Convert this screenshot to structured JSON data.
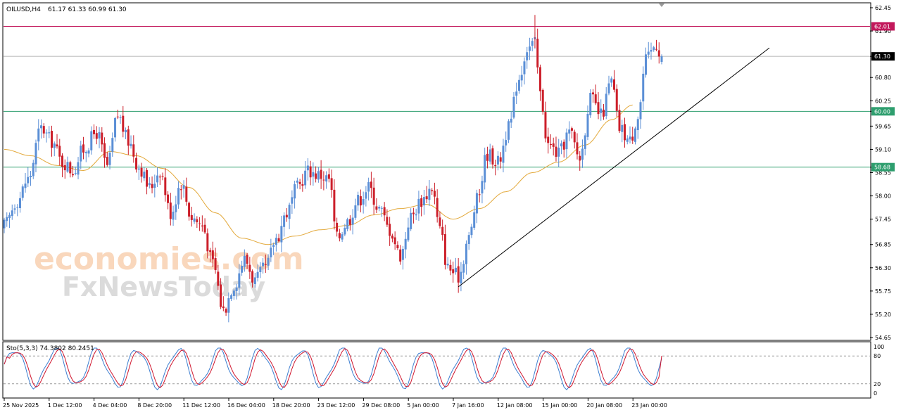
{
  "header": {
    "symbol_label": "OILUSD,H4",
    "ohlc_text": "61.17 61.33 60.99 61.30"
  },
  "watermark": {
    "line1": "economies.com",
    "line2": "FxNewsToday"
  },
  "colors": {
    "background": "#ffffff",
    "bull_candle": "#5b8fd6",
    "bear_candle": "#cc1f2a",
    "moving_average": "#e3a93b",
    "resistance_line": "#c2185b",
    "support_line": "#2e9e6e",
    "current_price_line": "#b5b5b5",
    "trendline": "#000000",
    "stoch_main": "#3d7fd1",
    "stoch_signal": "#d0172f"
  },
  "chart_data": [
    {
      "type": "candlestick",
      "symbol": "OILUSD",
      "timeframe": "H4",
      "y_axis_ticks": [
        "62.45",
        "61.90",
        "61.30",
        "60.80",
        "60.25",
        "60.00",
        "59.65",
        "59.10",
        "58.68",
        "58.55",
        "58.00",
        "57.45",
        "56.85",
        "56.30",
        "55.75",
        "55.20",
        "54.65"
      ],
      "ylim": [
        54.6,
        62.55
      ],
      "x_axis_ticks": [
        "25 Nov 2025",
        "1 Dec 12:00",
        "4 Dec 04:00",
        "8 Dec 20:00",
        "11 Dec 12:00",
        "16 Dec 04:00",
        "18 Dec 20:00",
        "23 Dec 12:00",
        "29 Dec 08:00",
        "5 Jan 00:00",
        "7 Jan 16:00",
        "12 Jan 08:00",
        "15 Jan 00:00",
        "20 Jan 08:00",
        "23 Jan 00:00"
      ],
      "price_labels": [
        {
          "value": 62.01,
          "text": "62.01",
          "kind": "resistance"
        },
        {
          "value": 61.3,
          "text": "61.30",
          "kind": "current"
        },
        {
          "value": 60.0,
          "text": "60.00",
          "kind": "support"
        },
        {
          "value": 58.68,
          "text": "58.68",
          "kind": "support"
        }
      ],
      "horizontal_lines": [
        62.01,
        61.3,
        60.0,
        58.68
      ],
      "trendline": {
        "from_price": 55.85,
        "to_price": 61.5,
        "from_time": "7 Jan 16:00",
        "to_time": "after 23 Jan"
      },
      "moving_average_anchors": [
        [
          0,
          59.1
        ],
        [
          10,
          58.95
        ],
        [
          20,
          58.72
        ],
        [
          30,
          58.6
        ],
        [
          40,
          59.05
        ],
        [
          50,
          58.95
        ],
        [
          60,
          58.65
        ],
        [
          70,
          58.2
        ],
        [
          80,
          57.6
        ],
        [
          90,
          57.0
        ],
        [
          100,
          56.85
        ],
        [
          110,
          57.05
        ],
        [
          120,
          57.2
        ],
        [
          130,
          57.3
        ],
        [
          140,
          57.55
        ],
        [
          150,
          57.7
        ],
        [
          160,
          57.8
        ],
        [
          170,
          57.45
        ],
        [
          180,
          57.7
        ],
        [
          190,
          58.1
        ],
        [
          200,
          58.55
        ],
        [
          210,
          58.8
        ],
        [
          220,
          59.2
        ],
        [
          230,
          59.8
        ],
        [
          238,
          60.15
        ]
      ],
      "price_anchors": [
        [
          0,
          57.3
        ],
        [
          5,
          57.9
        ],
        [
          9,
          58.4
        ],
        [
          14,
          59.6
        ],
        [
          18,
          59.3
        ],
        [
          22,
          58.8
        ],
        [
          26,
          58.6
        ],
        [
          30,
          59.1
        ],
        [
          35,
          59.5
        ],
        [
          39,
          58.7
        ],
        [
          43,
          59.9
        ],
        [
          47,
          59.3
        ],
        [
          51,
          58.7
        ],
        [
          55,
          58.2
        ],
        [
          59,
          58.6
        ],
        [
          63,
          57.6
        ],
        [
          67,
          58.3
        ],
        [
          71,
          57.5
        ],
        [
          75,
          57.3
        ],
        [
          79,
          56.4
        ],
        [
          83,
          55.3
        ],
        [
          87,
          55.9
        ],
        [
          91,
          56.5
        ],
        [
          95,
          56.0
        ],
        [
          99,
          56.3
        ],
        [
          103,
          57.0
        ],
        [
          107,
          57.6
        ],
        [
          111,
          58.2
        ],
        [
          115,
          58.6
        ],
        [
          119,
          58.5
        ],
        [
          123,
          58.4
        ],
        [
          126,
          57.0
        ],
        [
          130,
          57.4
        ],
        [
          134,
          57.9
        ],
        [
          138,
          58.2
        ],
        [
          142,
          57.7
        ],
        [
          146,
          57.2
        ],
        [
          150,
          56.6
        ],
        [
          154,
          57.5
        ],
        [
          158,
          57.9
        ],
        [
          162,
          58.2
        ],
        [
          165,
          57.2
        ],
        [
          168,
          56.3
        ],
        [
          172,
          56.1
        ],
        [
          176,
          57.0
        ],
        [
          179,
          57.9
        ],
        [
          183,
          59.0
        ],
        [
          187,
          58.8
        ],
        [
          191,
          59.6
        ],
        [
          195,
          60.8
        ],
        [
          198,
          61.5
        ],
        [
          201,
          61.6
        ],
        [
          203,
          60.4
        ],
        [
          206,
          59.2
        ],
        [
          210,
          59.0
        ],
        [
          214,
          59.5
        ],
        [
          218,
          58.9
        ],
        [
          222,
          60.3
        ],
        [
          226,
          59.9
        ],
        [
          230,
          60.7
        ],
        [
          233,
          59.6
        ],
        [
          237,
          59.3
        ],
        [
          240,
          59.9
        ],
        [
          243,
          61.2
        ],
        [
          247,
          61.6
        ],
        [
          249,
          61.3
        ]
      ]
    },
    {
      "type": "line",
      "indicator": "Stochastic",
      "title": "Sto(5,3,3) 74.3802 80.2451",
      "y_axis_ticks": [
        "100",
        "80",
        "20",
        "0"
      ],
      "ylim": [
        0,
        100
      ],
      "levels": [
        80,
        20
      ],
      "series": [
        {
          "name": "main",
          "last_value": 74.3802
        },
        {
          "name": "signal",
          "last_value": 80.2451
        }
      ]
    }
  ]
}
